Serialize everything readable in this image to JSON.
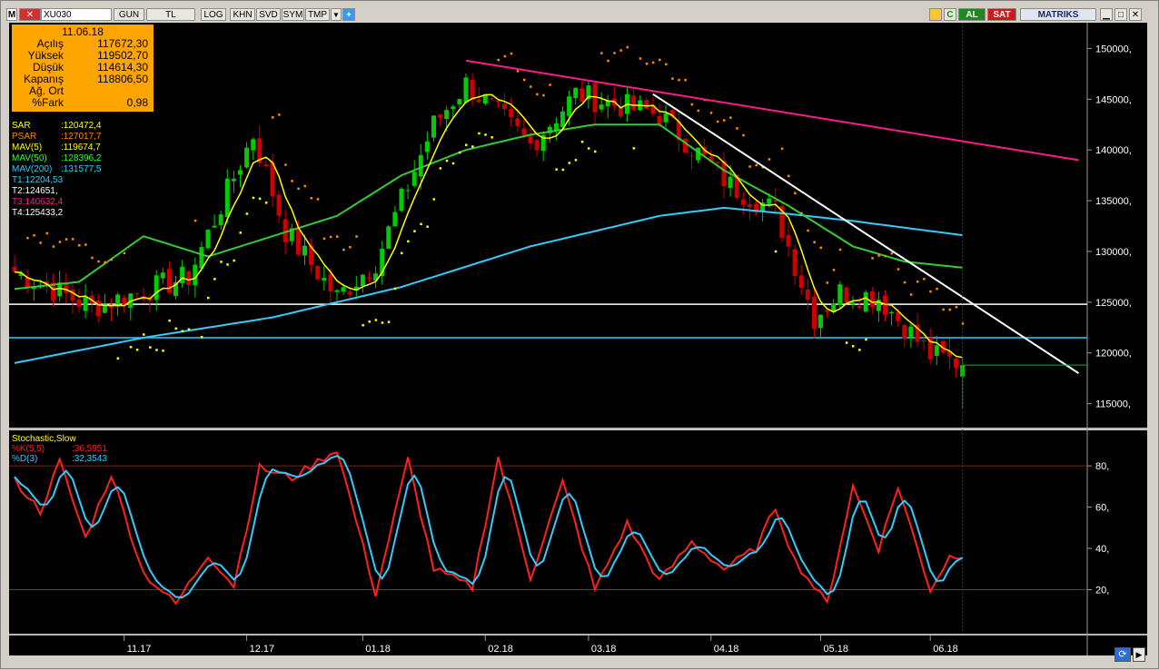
{
  "toolbar": {
    "symbol": "XU030",
    "buttons": [
      "GUN",
      "TL",
      "LOG",
      "KHN",
      "SVD",
      "SYM",
      "TMP"
    ],
    "buy_label": "AL",
    "sell_label": "SAT",
    "brand": "MATRIKS"
  },
  "info_box": {
    "date": "11.06.18",
    "rows": [
      {
        "label": "Açılış",
        "value": "117672,30"
      },
      {
        "label": "Yüksek",
        "value": "119502,70"
      },
      {
        "label": "Düşük",
        "value": "114614,30"
      },
      {
        "label": "Kapanış",
        "value": "118806,50"
      },
      {
        "label": "Ağ. Ort",
        "value": ""
      },
      {
        "label": "%Fark",
        "value": "0,98"
      }
    ]
  },
  "indicators": [
    {
      "label": "SAR",
      "value": ":120472,4",
      "color": "#ffff00"
    },
    {
      "label": "PSAR",
      "value": ":127017,7",
      "color": "#ff8c00"
    },
    {
      "label": "MAV(5)",
      "value": ":119674,7",
      "color": "#ffff00"
    },
    {
      "label": "MAV(50)",
      "value": ":128396,2",
      "color": "#33ff33"
    },
    {
      "label": "MAV(200)",
      "value": ":131577,5",
      "color": "#33ccff"
    },
    {
      "label": "T1:12204,53",
      "value": "",
      "color": "#33ccff"
    },
    {
      "label": "T2:124651,",
      "value": "",
      "color": "#ffffff"
    },
    {
      "label": "T3:140632,4",
      "value": "",
      "color": "#ff1a8c"
    },
    {
      "label": "T4:125433,2",
      "value": "",
      "color": "#ffffff"
    }
  ],
  "price_axis": [
    "150000,",
    "145000,",
    "140000,",
    "135000,",
    "130000,",
    "125000,",
    "120000,",
    "115000,"
  ],
  "stochastic": {
    "title": "Stochastic,Slow",
    "k_label": "%K(5,5)",
    "k_value": ":36,5951",
    "d_label": "%D(3)",
    "d_value": ":32,3543",
    "axis": [
      "80,",
      "60,",
      "40,",
      "20,"
    ]
  },
  "time_axis": [
    "11.17",
    "12.17",
    "01.18",
    "02.18",
    "03.18",
    "04.18",
    "05.18",
    "06.18"
  ],
  "colors": {
    "background": "#000000",
    "up": "#00cc00",
    "down": "#cc0000",
    "mav5": "#ffff00",
    "mav50": "#33cc33",
    "mav200": "#33ccff",
    "psar": "#ff8c00",
    "sar": "#ffff00",
    "trend_magenta": "#ff1a8c",
    "stoch_k": "#ff2020",
    "stoch_d": "#33ccff"
  },
  "chart_data": {
    "type": "candlestick",
    "title": "XU030",
    "y_range": [
      113000,
      152000
    ],
    "stoch_range": [
      0,
      95
    ],
    "anchors_x": [
      0,
      12,
      27,
      37,
      42,
      50,
      56,
      65,
      70,
      80,
      87,
      93,
      100,
      111,
      118,
      124,
      128,
      134,
      142,
      148
    ],
    "anchors_close": [
      128000,
      124500,
      127500,
      141500,
      132000,
      125500,
      129000,
      142500,
      146500,
      140500,
      145500,
      144500,
      143500,
      136500,
      134000,
      123500,
      126000,
      125500,
      119800,
      118800
    ],
    "mav50_points": [
      [
        0,
        126300
      ],
      [
        10,
        127000
      ],
      [
        20,
        131500
      ],
      [
        30,
        129500
      ],
      [
        40,
        131500
      ],
      [
        50,
        133500
      ],
      [
        60,
        137500
      ],
      [
        70,
        140000
      ],
      [
        80,
        141500
      ],
      [
        90,
        142500
      ],
      [
        100,
        142500
      ],
      [
        110,
        138000
      ],
      [
        120,
        134500
      ],
      [
        130,
        130500
      ],
      [
        138,
        129000
      ],
      [
        147,
        128400
      ]
    ],
    "mav200_points": [
      [
        0,
        119000
      ],
      [
        20,
        121500
      ],
      [
        40,
        123500
      ],
      [
        60,
        126500
      ],
      [
        80,
        130500
      ],
      [
        100,
        133500
      ],
      [
        110,
        134300
      ],
      [
        120,
        133700
      ],
      [
        130,
        133000
      ],
      [
        147,
        131600
      ]
    ],
    "stoch_k_points": [
      [
        0,
        73
      ],
      [
        4,
        58
      ],
      [
        7,
        82
      ],
      [
        11,
        45
      ],
      [
        15,
        76
      ],
      [
        20,
        28
      ],
      [
        25,
        13
      ],
      [
        30,
        37
      ],
      [
        34,
        22
      ],
      [
        38,
        79
      ],
      [
        43,
        74
      ],
      [
        50,
        88
      ],
      [
        56,
        18
      ],
      [
        61,
        83
      ],
      [
        65,
        30
      ],
      [
        71,
        21
      ],
      [
        75,
        84
      ],
      [
        80,
        26
      ],
      [
        85,
        72
      ],
      [
        90,
        20
      ],
      [
        95,
        52
      ],
      [
        100,
        24
      ],
      [
        105,
        43
      ],
      [
        110,
        30
      ],
      [
        115,
        40
      ],
      [
        118,
        60
      ],
      [
        121,
        34
      ],
      [
        126,
        13
      ],
      [
        130,
        70
      ],
      [
        134,
        40
      ],
      [
        137,
        70
      ],
      [
        142,
        20
      ],
      [
        145,
        36
      ],
      [
        147,
        37
      ]
    ],
    "horizontal_lines": [
      {
        "name": "T1",
        "value": 121500,
        "color": "#33ccff"
      },
      {
        "name": "T4",
        "value": 124800,
        "color": "#ffffff"
      }
    ],
    "trendlines": [
      {
        "name": "T3",
        "from": [
          70,
          148800
        ],
        "to": [
          165,
          139000
        ],
        "color": "#ff1a8c"
      },
      {
        "name": "T2",
        "from": [
          99,
          145500
        ],
        "to": [
          165,
          118000
        ],
        "color": "#ffffff"
      }
    ],
    "stoch_levels": [
      80,
      20
    ],
    "num_bars": 148
  }
}
